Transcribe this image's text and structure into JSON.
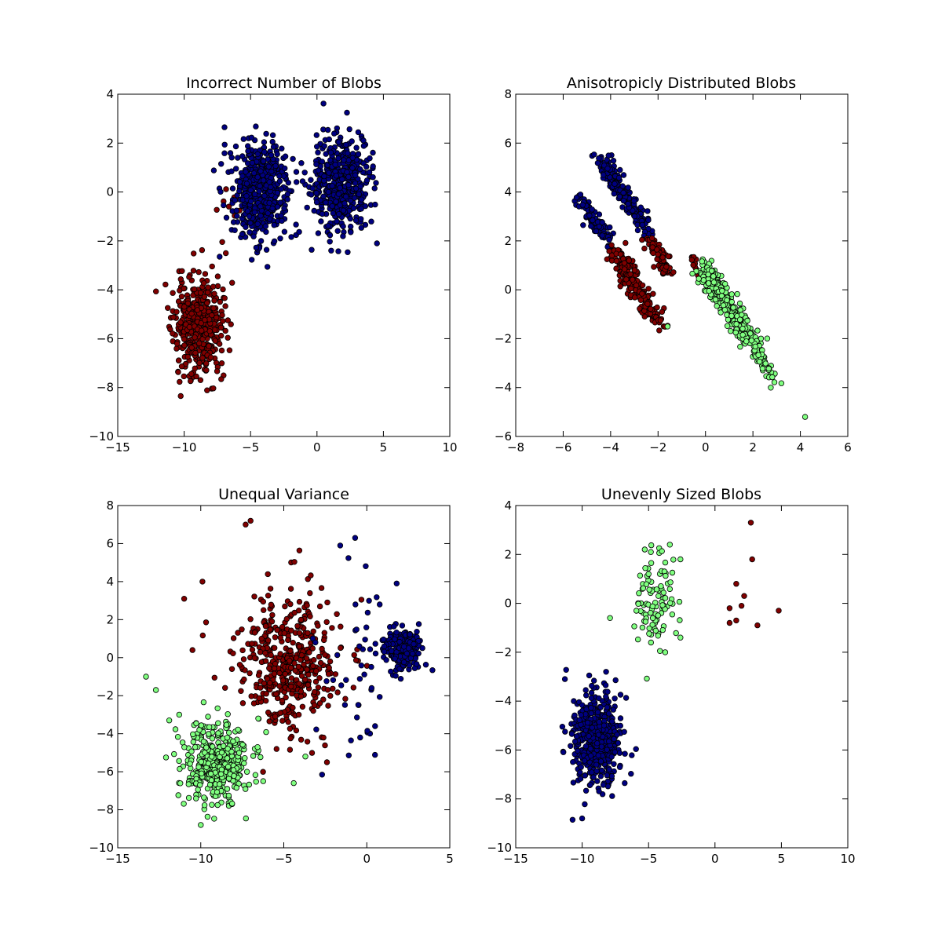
{
  "colors": {
    "red": "#800000",
    "blue": "#000080",
    "green": "#80ff80"
  },
  "chart_data": [
    {
      "type": "scatter",
      "title": "Incorrect Number of Blobs",
      "xlim": [
        -15,
        10
      ],
      "ylim": [
        -10,
        4
      ],
      "xticks": [
        -15,
        -10,
        -5,
        0,
        5,
        10
      ],
      "yticks": [
        -10,
        -8,
        -6,
        -4,
        -2,
        0,
        2,
        4
      ],
      "grid": false,
      "series": [
        {
          "color": "red",
          "clusters": [
            {
              "cx": -9.0,
              "cy": -5.5,
              "sx": 0.9,
              "sy": 1.0,
              "n": 440,
              "seed": 11
            },
            {
              "cx": -6.8,
              "cy": -0.6,
              "sx": 0.5,
              "sy": 0.3,
              "n": 8,
              "seed": 12
            }
          ]
        },
        {
          "color": "blue",
          "clusters": [
            {
              "cx": -4.4,
              "cy": 0.0,
              "sx": 1.1,
              "sy": 1.0,
              "n": 480,
              "seed": 13
            },
            {
              "cx": 1.8,
              "cy": 0.3,
              "sx": 1.1,
              "sy": 1.0,
              "n": 480,
              "seed": 14
            }
          ]
        }
      ]
    },
    {
      "type": "scatter",
      "title": "Anisotropicly Distributed Blobs",
      "xlim": [
        -8,
        6
      ],
      "ylim": [
        -6,
        8
      ],
      "xticks": [
        -8,
        -6,
        -4,
        -2,
        0,
        2,
        4,
        6
      ],
      "yticks": [
        -6,
        -4,
        -2,
        0,
        2,
        4,
        6,
        8
      ],
      "grid": false,
      "series": [
        {
          "color": "blue",
          "segments": [
            {
              "x0": -4.6,
              "y0": 5.6,
              "x1": -2.3,
              "y1": 2.2,
              "w": 0.18,
              "n": 200,
              "seed": 21
            },
            {
              "x0": -5.4,
              "y0": 3.8,
              "x1": -3.9,
              "y1": 1.8,
              "w": 0.15,
              "n": 90,
              "seed": 22
            }
          ]
        },
        {
          "color": "red",
          "segments": [
            {
              "x0": -2.4,
              "y0": 2.2,
              "x1": -1.5,
              "y1": 0.6,
              "w": 0.15,
              "n": 70,
              "seed": 23
            },
            {
              "x0": -4.0,
              "y0": 1.8,
              "x1": -1.8,
              "y1": -1.6,
              "w": 0.2,
              "n": 200,
              "seed": 24
            },
            {
              "x0": -0.6,
              "y0": 1.4,
              "x1": -0.2,
              "y1": 0.4,
              "w": 0.12,
              "n": 12,
              "seed": 25
            }
          ]
        },
        {
          "color": "green",
          "segments": [
            {
              "x0": -0.3,
              "y0": 1.2,
              "x1": 2.2,
              "y1": -2.6,
              "w": 0.2,
              "n": 380,
              "seed": 26
            },
            {
              "x0": 2.0,
              "y0": -2.3,
              "x1": 3.3,
              "y1": -4.2,
              "w": 0.12,
              "n": 35,
              "seed": 27
            }
          ],
          "points": [
            [
              4.2,
              -5.2
            ],
            [
              -1.6,
              -1.5
            ]
          ]
        }
      ]
    },
    {
      "type": "scatter",
      "title": "Unequal Variance",
      "xlim": [
        -15,
        5
      ],
      "ylim": [
        -10,
        8
      ],
      "xticks": [
        -15,
        -10,
        -5,
        0,
        5
      ],
      "yticks": [
        -10,
        -8,
        -6,
        -4,
        -2,
        0,
        2,
        4,
        6,
        8
      ],
      "grid": false,
      "series": [
        {
          "color": "red",
          "clusters": [
            {
              "cx": -4.6,
              "cy": -0.3,
              "sx": 1.6,
              "sy": 1.9,
              "n": 440,
              "seed": 31
            }
          ],
          "points": [
            [
              -7.0,
              7.2
            ],
            [
              -7.3,
              7.0
            ],
            [
              -11.0,
              3.1
            ],
            [
              -10.5,
              0.4
            ],
            [
              -9.9,
              4.0
            ],
            [
              -2.4,
              -5.5
            ]
          ]
        },
        {
          "color": "blue",
          "clusters": [
            {
              "cx": 2.1,
              "cy": 0.5,
              "sx": 0.5,
              "sy": 0.5,
              "n": 260,
              "seed": 32
            },
            {
              "cx": -0.6,
              "cy": -0.8,
              "sx": 1.2,
              "sy": 2.3,
              "n": 40,
              "seed": 33
            }
          ],
          "points": [
            [
              -0.7,
              6.3
            ],
            [
              -1.6,
              5.9
            ],
            [
              1.8,
              3.9
            ],
            [
              -0.4,
              -4.2
            ],
            [
              0.5,
              -3.6
            ]
          ]
        },
        {
          "color": "green",
          "clusters": [
            {
              "cx": -9.1,
              "cy": -5.6,
              "sx": 1.0,
              "sy": 1.0,
              "n": 430,
              "seed": 34
            }
          ],
          "points": [
            [
              -13.3,
              -1.0
            ],
            [
              -12.7,
              -1.7
            ],
            [
              -10.0,
              -8.8
            ],
            [
              -11.3,
              -3.0
            ],
            [
              -11.9,
              -3.3
            ],
            [
              -4.4,
              -6.6
            ],
            [
              -3.7,
              -5.2
            ]
          ]
        }
      ]
    },
    {
      "type": "scatter",
      "title": "Unevenly Sized Blobs",
      "xlim": [
        -15,
        10
      ],
      "ylim": [
        -10,
        4
      ],
      "xticks": [
        -15,
        -10,
        -5,
        0,
        5,
        10
      ],
      "yticks": [
        -10,
        -8,
        -6,
        -4,
        -2,
        0,
        2,
        4
      ],
      "grid": false,
      "series": [
        {
          "color": "blue",
          "clusters": [
            {
              "cx": -8.9,
              "cy": -5.5,
              "sx": 0.9,
              "sy": 1.0,
              "n": 480,
              "seed": 41
            }
          ],
          "points": [
            [
              -11.3,
              -3.1
            ],
            [
              -10.0,
              -8.8
            ],
            [
              -8.2,
              -2.8
            ]
          ]
        },
        {
          "color": "green",
          "clusters": [
            {
              "cx": -4.6,
              "cy": 0.2,
              "sx": 0.8,
              "sy": 1.0,
              "n": 100,
              "seed": 42
            }
          ],
          "points": [
            [
              -3.4,
              2.4
            ],
            [
              -2.6,
              1.8
            ],
            [
              -7.9,
              -0.6
            ],
            [
              -2.6,
              -1.4
            ]
          ]
        },
        {
          "color": "red",
          "points": [
            [
              2.7,
              3.3
            ],
            [
              2.8,
              1.8
            ],
            [
              1.6,
              0.8
            ],
            [
              2.2,
              0.3
            ],
            [
              1.1,
              -0.2
            ],
            [
              2.0,
              -0.1
            ],
            [
              4.8,
              -0.3
            ],
            [
              1.6,
              -0.7
            ],
            [
              1.1,
              -0.8
            ],
            [
              3.2,
              -0.9
            ]
          ]
        }
      ]
    }
  ]
}
